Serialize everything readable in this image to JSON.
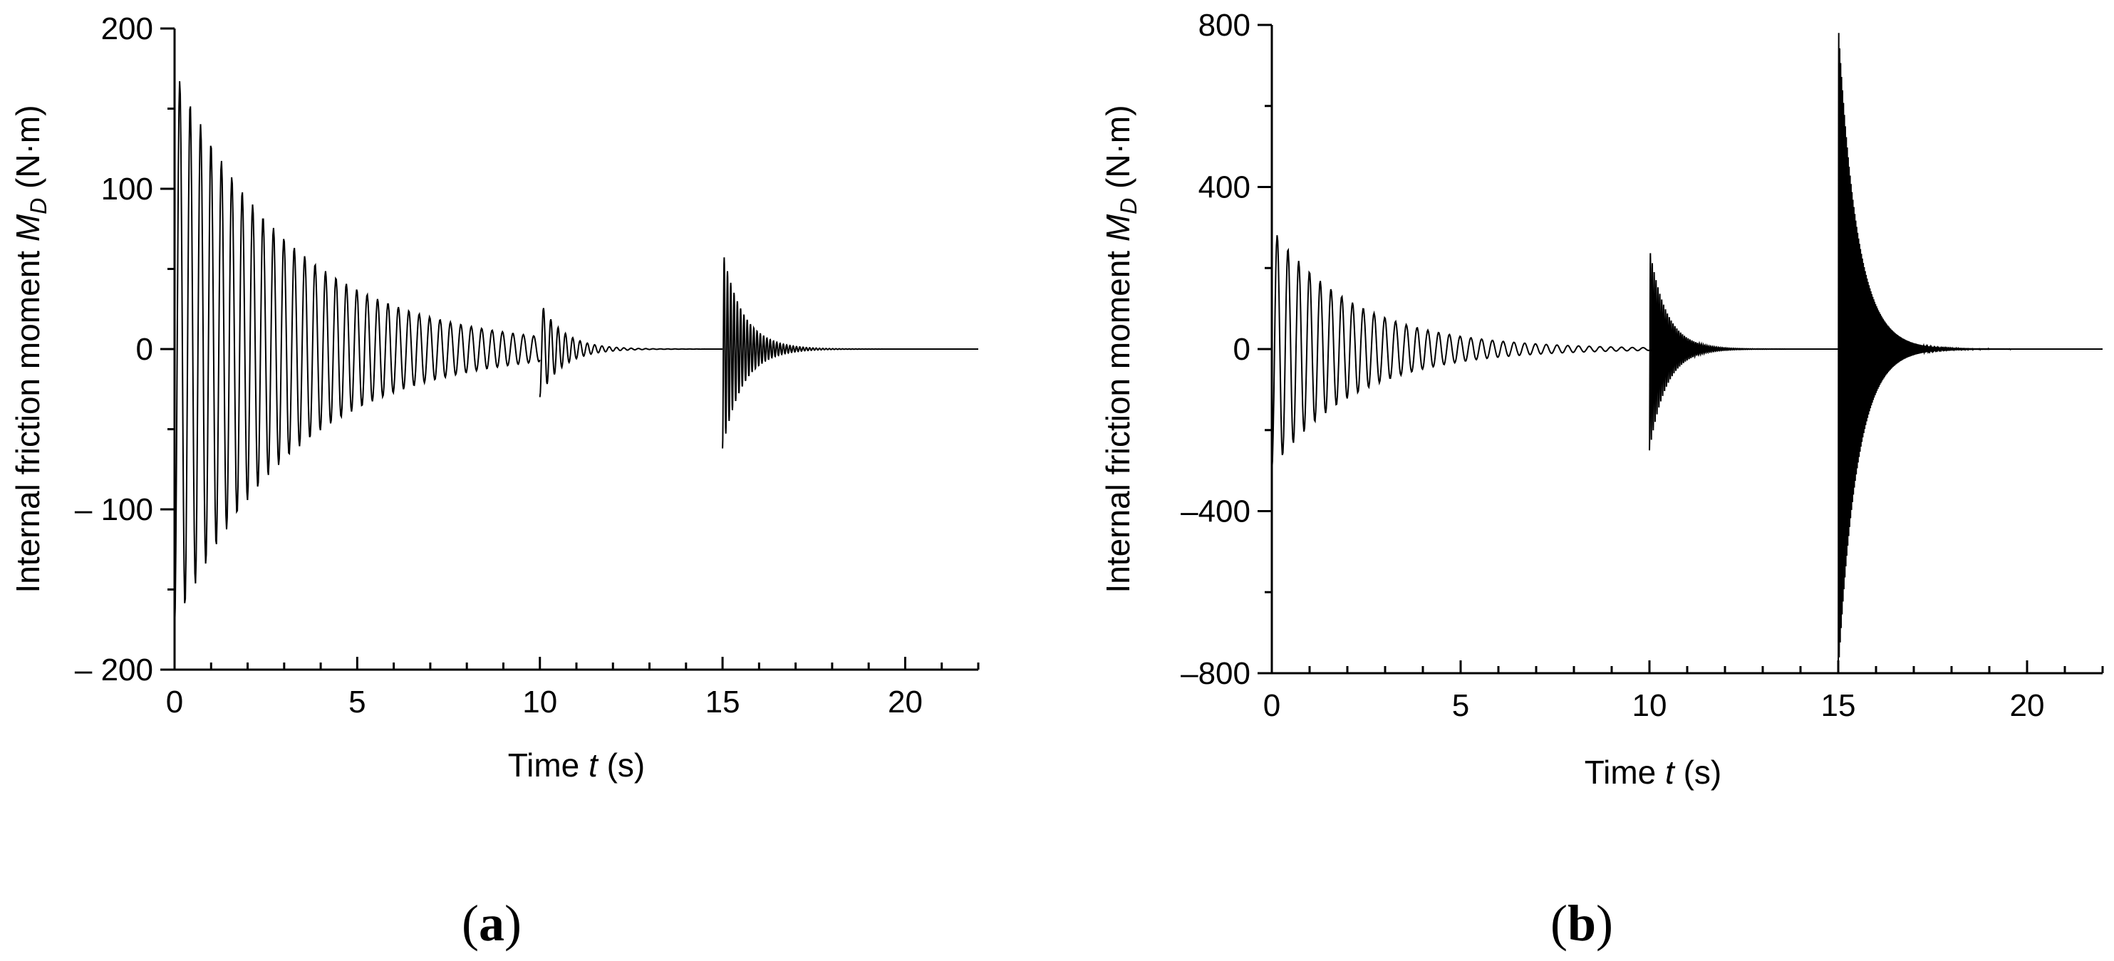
{
  "chart_data": [
    {
      "panel": "a",
      "panel_label_open": "(",
      "panel_label_letter": "a",
      "panel_label_close": ")",
      "type": "line",
      "xlabel_prefix": "Time ",
      "xlabel_var": "t",
      "xlabel_unit": " (s)",
      "ylabel_prefix": "Internal friction moment ",
      "ylabel_var": "M",
      "ylabel_sub": "D",
      "ylabel_unit": " (N·m)",
      "xlim": [
        0,
        22
      ],
      "ylim": [
        -200,
        200
      ],
      "xticks": [
        0,
        5,
        10,
        15,
        20
      ],
      "xtick_labels": [
        "0",
        "5",
        "10",
        "15",
        "20"
      ],
      "yticks": [
        -200,
        -100,
        0,
        100,
        200
      ],
      "ytick_labels": [
        "– 200",
        "– 100",
        "0",
        "100",
        "200"
      ],
      "bursts": [
        {
          "t0": 0.0,
          "t1": 10.0,
          "amp": 175,
          "period": 0.285,
          "decay": 0.31
        },
        {
          "t0": 10.0,
          "t1": 15.0,
          "amp": 30,
          "period": 0.2,
          "decay": 1.6
        },
        {
          "t0": 15.0,
          "t1": 22.0,
          "amp": 62,
          "period": 0.09,
          "decay": 1.8
        }
      ]
    },
    {
      "panel": "b",
      "panel_label_open": "(",
      "panel_label_letter": "b",
      "panel_label_close": ")",
      "type": "line",
      "xlabel_prefix": "Time ",
      "xlabel_var": "t",
      "xlabel_unit": " (s)",
      "ylabel_prefix": "Internal friction moment ",
      "ylabel_var": "M",
      "ylabel_sub": "D",
      "ylabel_unit": " (N·m)",
      "xlim": [
        0,
        22
      ],
      "ylim": [
        -800,
        800
      ],
      "xticks": [
        0,
        5,
        10,
        15,
        20
      ],
      "xtick_labels": [
        "0",
        "5",
        "10",
        "15",
        "20"
      ],
      "yticks": [
        -800,
        -400,
        0,
        400,
        800
      ],
      "ytick_labels": [
        "–800",
        "–400",
        "0",
        "400",
        "800"
      ],
      "bursts": [
        {
          "t0": 0.0,
          "t1": 10.0,
          "amp": 300,
          "period": 0.285,
          "decay": 0.45
        },
        {
          "t0": 10.0,
          "t1": 15.0,
          "amp": 250,
          "period": 0.05,
          "decay": 2.2
        },
        {
          "t0": 15.0,
          "t1": 22.0,
          "amp": 800,
          "period": 0.025,
          "decay": 2.0
        }
      ]
    }
  ]
}
